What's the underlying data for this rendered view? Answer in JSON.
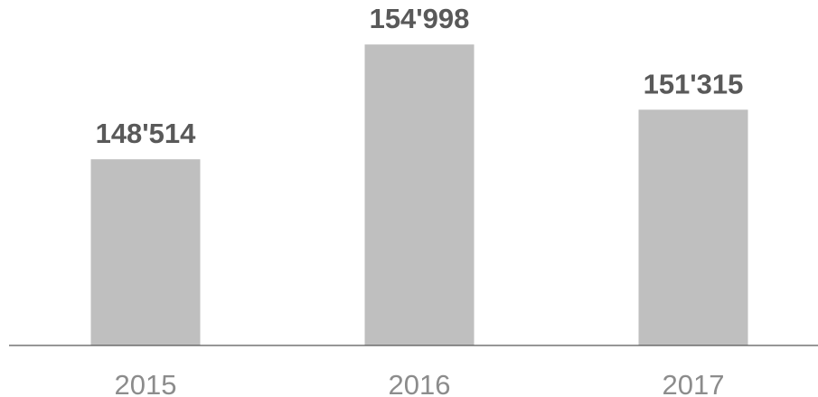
{
  "chart_data": {
    "type": "bar",
    "categories": [
      "2015",
      "2016",
      "2017"
    ],
    "values": [
      148514,
      154998,
      151315
    ],
    "value_labels": [
      "148'514",
      "154'998",
      "151'315"
    ],
    "title": "",
    "xlabel": "",
    "ylabel": "",
    "ylim": [
      138000,
      157000
    ],
    "grid": false,
    "legend": "none",
    "colors": {
      "bar": "#bfbfbf",
      "value_label": "#595959",
      "category_label": "#8c8c8c",
      "axis": "#595959"
    }
  }
}
